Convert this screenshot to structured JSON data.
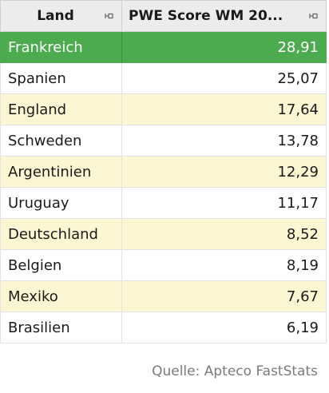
{
  "table": {
    "columns": [
      {
        "label": "Land",
        "pin_icon": "pin-icon"
      },
      {
        "label": "PWE Score WM 20...",
        "pin_icon": "pin-icon"
      }
    ],
    "selected_row": 0,
    "rows": [
      {
        "land": "Frankreich",
        "score": "28,91"
      },
      {
        "land": "Spanien",
        "score": "25,07"
      },
      {
        "land": "England",
        "score": "17,64"
      },
      {
        "land": "Schweden",
        "score": "13,78"
      },
      {
        "land": "Argentinien",
        "score": "12,29"
      },
      {
        "land": "Uruguay",
        "score": "11,17"
      },
      {
        "land": "Deutschland",
        "score": "8,52"
      },
      {
        "land": "Belgien",
        "score": "8,19"
      },
      {
        "land": "Mexiko",
        "score": "7,67"
      },
      {
        "land": "Brasilien",
        "score": "6,19"
      }
    ]
  },
  "source": "Quelle: Apteco FastStats",
  "colors": {
    "selected_row": "#4caa4f",
    "stripe": "#fdf6d2",
    "header_bg": "#ececec"
  }
}
